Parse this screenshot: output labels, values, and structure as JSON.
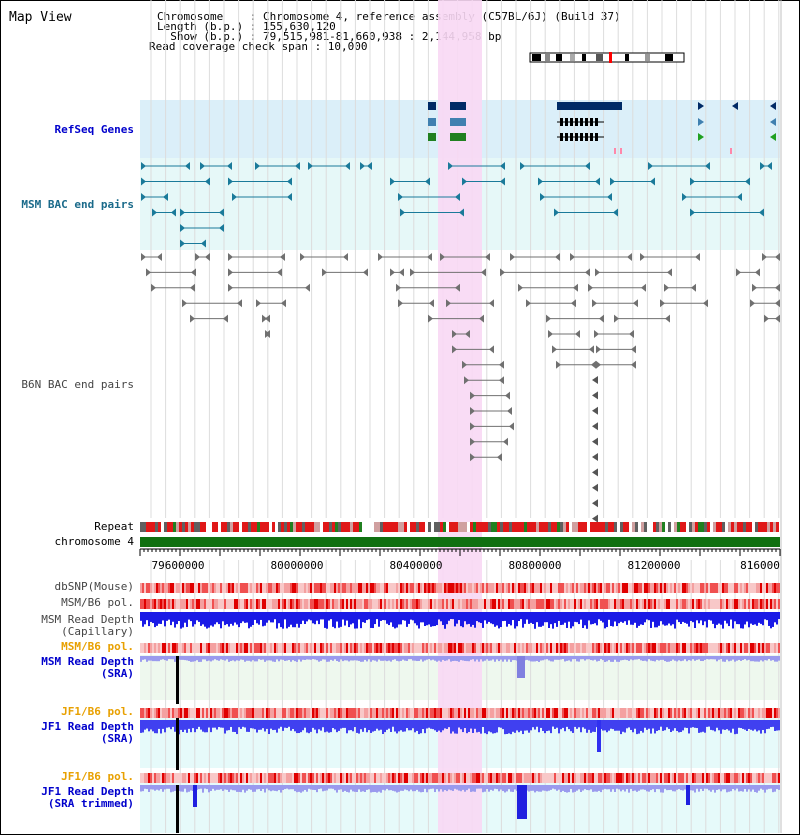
{
  "title": "Map View",
  "info": {
    "line1": "Chromosome    : Chromosome 4, reference assembly (C57BL/6J) (Build 37)",
    "line2": "Length (b.p.) : 155,630,120",
    "line3": "  Show (b.p.) : 79,515,981-81,660,938 : 2,144,958 bp",
    "line4": "Read coverage check span : 10,000"
  },
  "tracks": {
    "refseq": "RefSeq Genes",
    "msm_bac": "MSM BAC end pairs",
    "b6n_bac": "B6N BAC end pairs",
    "repeat": "Repeat",
    "chromosome": "chromosome 4",
    "dbsnp": "dbSNP(Mouse)",
    "msm_b6_pol": "MSM/B6 pol.",
    "msm_depth_cap_1": "MSM Read Depth",
    "msm_depth_cap_2": "(Capillary)",
    "msm_b6_pol2": "MSM/B6 pol.",
    "msm_depth_sra_1": "MSM Read Depth",
    "msm_depth_sra_2": "(SRA)",
    "jf1_b6_pol": "JF1/B6 pol.",
    "jf1_depth_sra_1": "JF1 Read Depth",
    "jf1_depth_sra_2": "(SRA)",
    "jf1_b6_pol2": "JF1/B6 pol.",
    "jf1_depth_trim_1": "JF1 Read Depth",
    "jf1_depth_trim_2": "(SRA trimmed)"
  },
  "axis_ticks": [
    "79600000",
    "80000000",
    "80400000",
    "80800000",
    "81200000",
    "816000"
  ],
  "colors": {
    "highlight": "#f8d8f4",
    "refseq_bg": "#dbeff9",
    "msm_bac_bg": "#e6f8f8",
    "chromosome": "#107010",
    "depth_blue": "#1414e6",
    "depth_light": "#8a8aee",
    "label_blue": "#0000cc",
    "label_orange": "#e8a000"
  }
}
